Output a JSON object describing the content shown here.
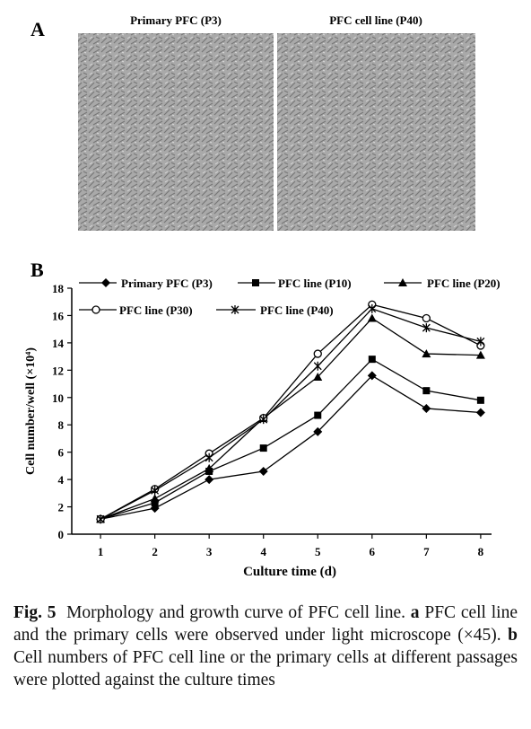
{
  "panel_a": {
    "label": "A",
    "images": [
      {
        "title": "Primary PFC (P3)"
      },
      {
        "title": "PFC cell line (P40)"
      }
    ]
  },
  "chart_data": {
    "type": "line",
    "panel_label": "B",
    "x_label": "Culture time (d)",
    "y_label": "Cell number/well (×10⁴)",
    "x": [
      1,
      2,
      3,
      4,
      5,
      6,
      7,
      8
    ],
    "xlim": [
      0.47,
      8.2
    ],
    "xticks": [
      1,
      2,
      3,
      4,
      5,
      6,
      7,
      8
    ],
    "ylim": [
      0,
      18
    ],
    "yticks": [
      0,
      2,
      4,
      6,
      8,
      10,
      12,
      14,
      16,
      18
    ],
    "series": [
      {
        "name": "Primary PFC (P3)",
        "color": "#000000",
        "marker": "diamond",
        "values": [
          1.1,
          1.9,
          4.0,
          4.6,
          7.5,
          11.6,
          9.2,
          8.9
        ]
      },
      {
        "name": "PFC line (P10)",
        "color": "#000000",
        "marker": "square",
        "values": [
          1.1,
          2.3,
          4.6,
          6.3,
          8.7,
          12.8,
          10.5,
          9.8
        ]
      },
      {
        "name": "PFC line (P20)",
        "color": "#000000",
        "marker": "triangle",
        "values": [
          1.1,
          2.6,
          4.8,
          8.5,
          11.5,
          15.8,
          13.2,
          13.1
        ]
      },
      {
        "name": "PFC line (P30)",
        "color": "#000000",
        "marker": "circle-open",
        "values": [
          1.1,
          3.3,
          5.9,
          8.5,
          13.2,
          16.8,
          15.8,
          13.8
        ]
      },
      {
        "name": "PFC line (P40)",
        "color": "#000000",
        "marker": "asterisk",
        "values": [
          1.1,
          3.2,
          5.6,
          8.4,
          12.3,
          16.5,
          15.1,
          14.1
        ]
      }
    ]
  },
  "caption": {
    "label": "Fig. 5",
    "text_1": "Morphology and growth curve of PFC cell line.",
    "label_a": "a",
    "text_2": "PFC cell line and the primary cells were observed under light microscope (×45).",
    "label_b": "b",
    "text_3": "Cell numbers of PFC cell line or the primary cells at different passages were plotted against the culture times"
  }
}
